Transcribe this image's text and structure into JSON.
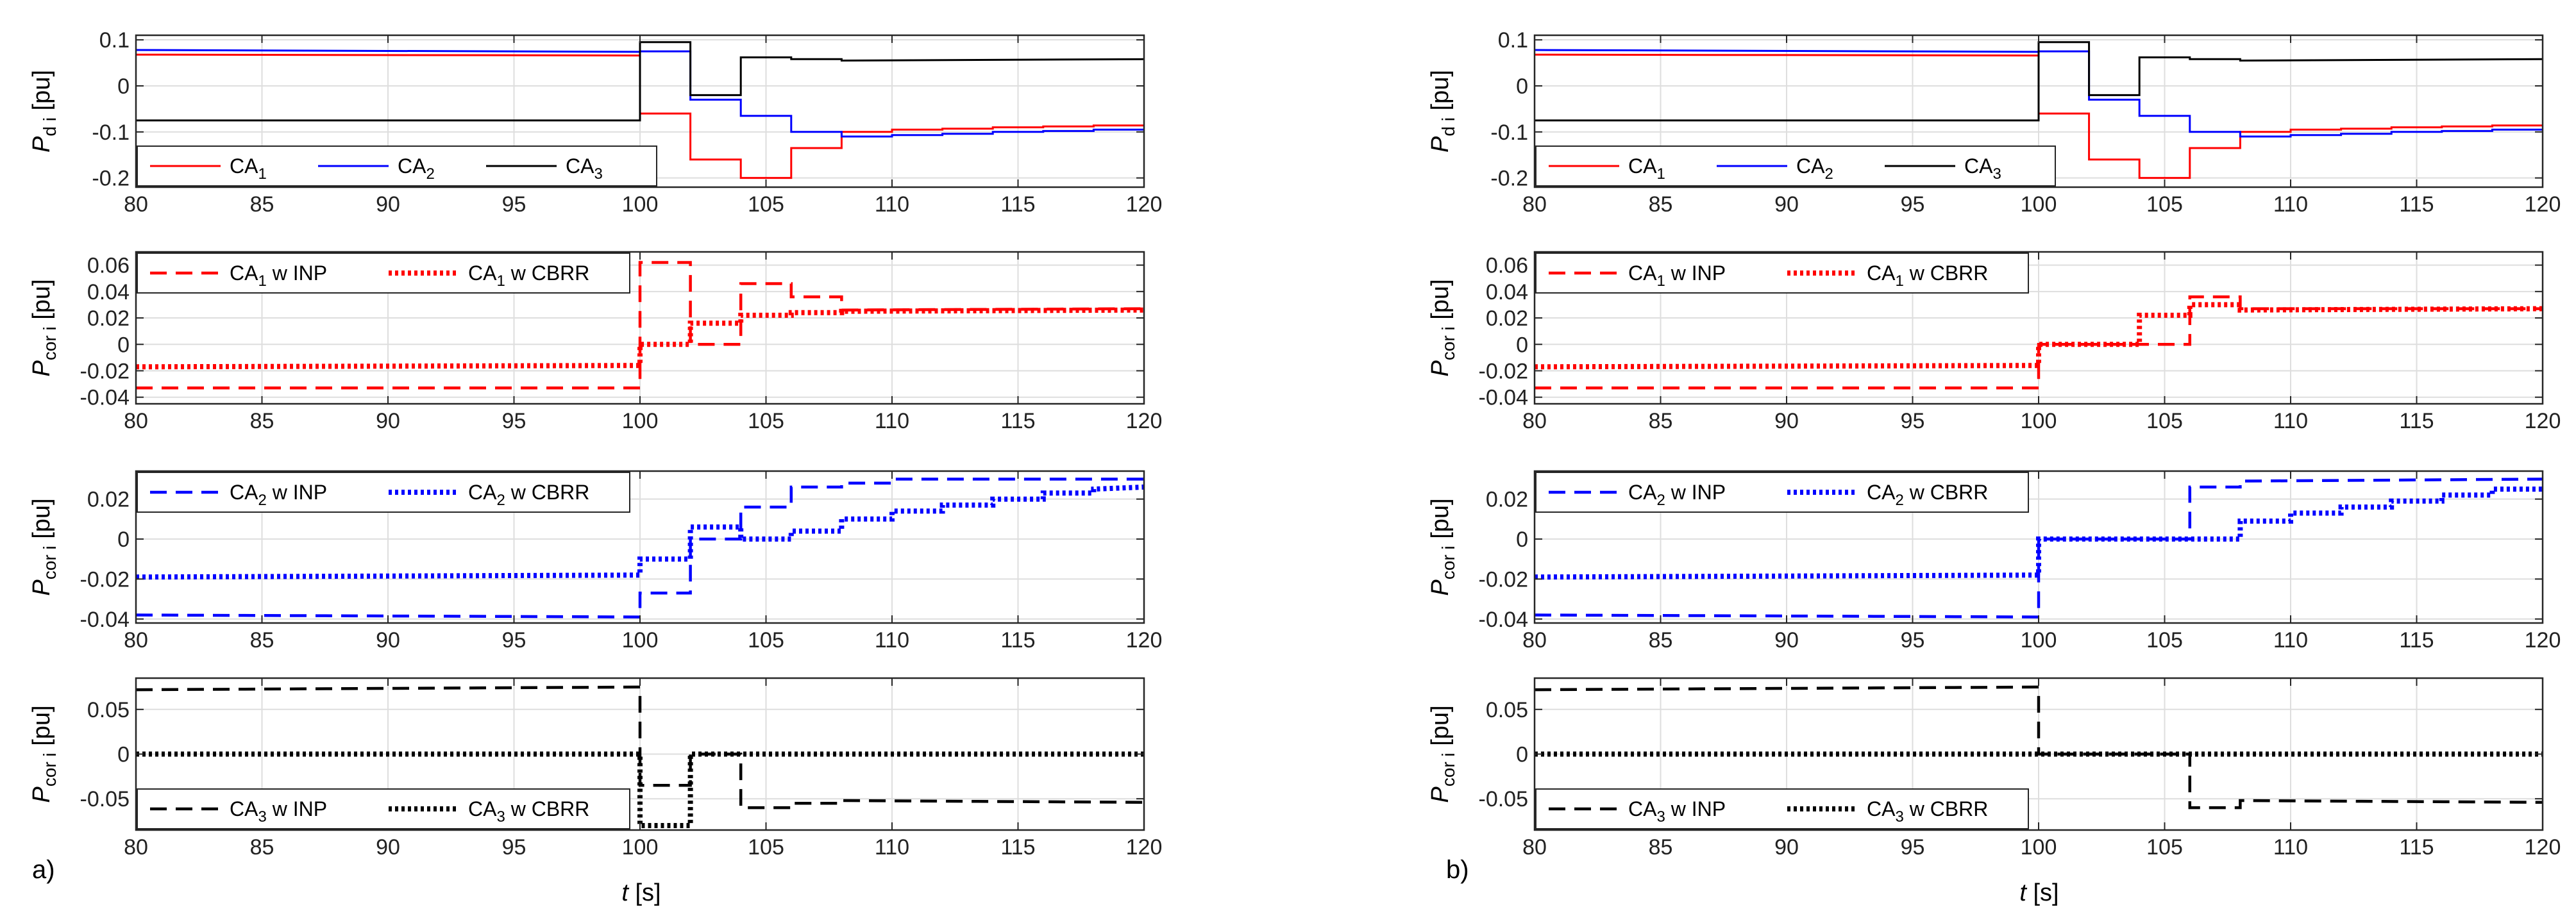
{
  "figure": {
    "xlabel_italic": "t",
    "xlabel_unit": " [s]",
    "panel_labels": [
      "a)",
      "b)"
    ]
  },
  "chart_data": [
    {
      "type": "line",
      "column": "a",
      "row": 1,
      "ylabel": {
        "base": "P",
        "sub": "d i",
        "unit": "[pu]"
      },
      "xlim": [
        80,
        120
      ],
      "ylim": [
        -0.22,
        0.11
      ],
      "xticks": [
        80,
        85,
        90,
        95,
        100,
        105,
        110,
        115,
        120
      ],
      "yticks": [
        0.1,
        0,
        -0.1,
        -0.2
      ],
      "ytick_labels": [
        "0.1",
        "0",
        "-0.1",
        "-0.2"
      ],
      "grid": true,
      "legend_position": "bottom-left",
      "legend_layout": "row",
      "series": [
        {
          "name": "CA",
          "sub": "1",
          "suffix": "",
          "color": "#ff0000",
          "dash": "solid",
          "x": [
            80,
            100,
            100,
            102,
            102,
            104,
            104,
            106,
            106,
            108,
            108,
            110,
            110,
            112,
            112,
            114,
            114,
            116,
            116,
            118,
            118,
            120
          ],
          "y": [
            0.068,
            0.066,
            -0.06,
            -0.06,
            -0.16,
            -0.16,
            -0.2,
            -0.2,
            -0.135,
            -0.135,
            -0.1,
            -0.1,
            -0.095,
            -0.095,
            -0.093,
            -0.093,
            -0.09,
            -0.09,
            -0.088,
            -0.088,
            -0.086,
            -0.086
          ]
        },
        {
          "name": "CA",
          "sub": "2",
          "suffix": "",
          "color": "#0000ff",
          "dash": "solid",
          "x": [
            80,
            100,
            100,
            102,
            102,
            104,
            104,
            106,
            106,
            108,
            108,
            110,
            110,
            112,
            112,
            114,
            114,
            116,
            116,
            118,
            118,
            120
          ],
          "y": [
            0.078,
            0.074,
            0.075,
            0.075,
            -0.03,
            -0.03,
            -0.065,
            -0.065,
            -0.1,
            -0.1,
            -0.11,
            -0.11,
            -0.107,
            -0.107,
            -0.104,
            -0.104,
            -0.1,
            -0.1,
            -0.098,
            -0.098,
            -0.095,
            -0.095
          ]
        },
        {
          "name": "CA",
          "sub": "3",
          "suffix": "",
          "color": "#000000",
          "dash": "solid",
          "x": [
            80,
            100,
            100,
            102,
            102,
            104,
            104,
            106,
            106,
            108,
            108,
            120
          ],
          "y": [
            -0.075,
            -0.075,
            0.095,
            0.095,
            -0.02,
            -0.02,
            0.062,
            0.062,
            0.058,
            0.058,
            0.055,
            0.058
          ]
        }
      ]
    },
    {
      "type": "line",
      "column": "a",
      "row": 2,
      "ylabel": {
        "base": "P",
        "sub": "cor i",
        "unit": "[pu]"
      },
      "xlim": [
        80,
        120
      ],
      "ylim": [
        -0.045,
        0.07
      ],
      "xticks": [
        80,
        85,
        90,
        95,
        100,
        105,
        110,
        115,
        120
      ],
      "yticks": [
        0.06,
        0.04,
        0.02,
        0,
        -0.02,
        -0.04
      ],
      "ytick_labels": [
        "0.06",
        "0.04",
        "0.02",
        "0",
        "-0.02",
        "-0.04"
      ],
      "grid": true,
      "legend_position": "top-left",
      "legend_layout": "row",
      "series": [
        {
          "name": "CA",
          "sub": "1",
          "suffix": " w INP",
          "color": "#ff0000",
          "dash": "dashed",
          "x": [
            80,
            100,
            100,
            102,
            102,
            104,
            104,
            106,
            106,
            108,
            108,
            120
          ],
          "y": [
            -0.033,
            -0.033,
            0.062,
            0.062,
            0.0,
            0.0,
            0.046,
            0.046,
            0.036,
            0.036,
            0.026,
            0.027
          ]
        },
        {
          "name": "CA",
          "sub": "1",
          "suffix": " w CBRR",
          "color": "#ff0000",
          "dash": "dotted",
          "x": [
            80,
            100,
            100,
            102,
            102,
            104,
            104,
            106,
            106,
            108,
            108,
            120
          ],
          "y": [
            -0.017,
            -0.016,
            0.0,
            0.0,
            0.016,
            0.016,
            0.022,
            0.022,
            0.024,
            0.024,
            0.025,
            0.026
          ]
        }
      ]
    },
    {
      "type": "line",
      "column": "a",
      "row": 3,
      "ylabel": {
        "base": "P",
        "sub": "cor i",
        "unit": "[pu]"
      },
      "xlim": [
        80,
        120
      ],
      "ylim": [
        -0.042,
        0.034
      ],
      "xticks": [
        80,
        85,
        90,
        95,
        100,
        105,
        110,
        115,
        120
      ],
      "yticks": [
        0.02,
        0,
        -0.02,
        -0.04
      ],
      "ytick_labels": [
        "0.02",
        "0",
        "-0.02",
        "-0.04"
      ],
      "grid": true,
      "legend_position": "top-left",
      "legend_layout": "row",
      "series": [
        {
          "name": "CA",
          "sub": "2",
          "suffix": " w INP",
          "color": "#0000ff",
          "dash": "dashed",
          "x": [
            80,
            100,
            100,
            102,
            102,
            104,
            104,
            106,
            106,
            108,
            108,
            110,
            110,
            120
          ],
          "y": [
            -0.038,
            -0.039,
            -0.027,
            -0.027,
            0.0,
            0.0,
            0.016,
            0.016,
            0.026,
            0.026,
            0.028,
            0.028,
            0.03,
            0.03
          ]
        },
        {
          "name": "CA",
          "sub": "2",
          "suffix": " w CBRR",
          "color": "#0000ff",
          "dash": "dotted",
          "x": [
            80,
            100,
            100,
            102,
            102,
            104,
            104,
            106,
            106,
            108,
            108,
            110,
            110,
            112,
            112,
            114,
            114,
            116,
            116,
            118,
            118,
            120
          ],
          "y": [
            -0.019,
            -0.018,
            -0.01,
            -0.01,
            0.006,
            0.006,
            0.0,
            0.0,
            0.004,
            0.004,
            0.01,
            0.01,
            0.014,
            0.014,
            0.017,
            0.017,
            0.02,
            0.02,
            0.023,
            0.023,
            0.025,
            0.026
          ]
        }
      ]
    },
    {
      "type": "line",
      "column": "a",
      "row": 4,
      "ylabel": {
        "base": "P",
        "sub": "cor i",
        "unit": "[pu]"
      },
      "xlim": [
        80,
        120
      ],
      "ylim": [
        -0.085,
        0.085
      ],
      "xticks": [
        80,
        85,
        90,
        95,
        100,
        105,
        110,
        115,
        120
      ],
      "yticks": [
        0.05,
        0,
        -0.05
      ],
      "ytick_labels": [
        "0.05",
        "0",
        "-0.05"
      ],
      "grid": true,
      "legend_position": "bottom-left",
      "legend_layout": "row",
      "series": [
        {
          "name": "CA",
          "sub": "3",
          "suffix": " w INP",
          "color": "#000000",
          "dash": "dashed",
          "x": [
            80,
            100,
            100,
            102,
            102,
            104,
            104,
            106,
            106,
            108,
            108,
            120
          ],
          "y": [
            0.072,
            0.075,
            -0.035,
            -0.035,
            0.0,
            0.0,
            -0.06,
            -0.06,
            -0.055,
            -0.055,
            -0.052,
            -0.054
          ]
        },
        {
          "name": "CA",
          "sub": "3",
          "suffix": " w CBRR",
          "color": "#000000",
          "dash": "dotted",
          "x": [
            80,
            100,
            100,
            102,
            102,
            120
          ],
          "y": [
            0.0,
            0.0,
            -0.08,
            -0.08,
            0.0,
            0.0
          ]
        }
      ]
    },
    {
      "type": "line",
      "column": "b",
      "row": 1,
      "ylabel": {
        "base": "P",
        "sub": "d i",
        "unit": "[pu]"
      },
      "xlim": [
        80,
        120
      ],
      "ylim": [
        -0.22,
        0.11
      ],
      "xticks": [
        80,
        85,
        90,
        95,
        100,
        105,
        110,
        115,
        120
      ],
      "yticks": [
        0.1,
        0,
        -0.1,
        -0.2
      ],
      "ytick_labels": [
        "0.1",
        "0",
        "-0.1",
        "-0.2"
      ],
      "grid": true,
      "legend_position": "bottom-left",
      "legend_layout": "row",
      "series": [
        {
          "name": "CA",
          "sub": "1",
          "suffix": "",
          "color": "#ff0000",
          "dash": "solid",
          "x": [
            80,
            100,
            100,
            102,
            102,
            104,
            104,
            106,
            106,
            108,
            108,
            110,
            110,
            112,
            112,
            114,
            114,
            116,
            116,
            118,
            118,
            120
          ],
          "y": [
            0.068,
            0.066,
            -0.06,
            -0.06,
            -0.16,
            -0.16,
            -0.2,
            -0.2,
            -0.135,
            -0.135,
            -0.1,
            -0.1,
            -0.095,
            -0.095,
            -0.093,
            -0.093,
            -0.09,
            -0.09,
            -0.088,
            -0.088,
            -0.086,
            -0.086
          ]
        },
        {
          "name": "CA",
          "sub": "2",
          "suffix": "",
          "color": "#0000ff",
          "dash": "solid",
          "x": [
            80,
            100,
            100,
            102,
            102,
            104,
            104,
            106,
            106,
            108,
            108,
            110,
            110,
            112,
            112,
            114,
            114,
            116,
            116,
            118,
            118,
            120
          ],
          "y": [
            0.078,
            0.074,
            0.075,
            0.075,
            -0.03,
            -0.03,
            -0.065,
            -0.065,
            -0.1,
            -0.1,
            -0.11,
            -0.11,
            -0.107,
            -0.107,
            -0.104,
            -0.104,
            -0.1,
            -0.1,
            -0.098,
            -0.098,
            -0.095,
            -0.095
          ]
        },
        {
          "name": "CA",
          "sub": "3",
          "suffix": "",
          "color": "#000000",
          "dash": "solid",
          "x": [
            80,
            100,
            100,
            102,
            102,
            104,
            104,
            106,
            106,
            108,
            108,
            120
          ],
          "y": [
            -0.075,
            -0.075,
            0.095,
            0.095,
            -0.02,
            -0.02,
            0.062,
            0.062,
            0.058,
            0.058,
            0.055,
            0.058
          ]
        }
      ]
    },
    {
      "type": "line",
      "column": "b",
      "row": 2,
      "ylabel": {
        "base": "P",
        "sub": "cor i",
        "unit": "[pu]"
      },
      "xlim": [
        80,
        120
      ],
      "ylim": [
        -0.045,
        0.07
      ],
      "xticks": [
        80,
        85,
        90,
        95,
        100,
        105,
        110,
        115,
        120
      ],
      "yticks": [
        0.06,
        0.04,
        0.02,
        0,
        -0.02,
        -0.04
      ],
      "ytick_labels": [
        "0.06",
        "0.04",
        "0.02",
        "0",
        "-0.02",
        "-0.04"
      ],
      "grid": true,
      "legend_position": "top-left",
      "legend_layout": "row",
      "series": [
        {
          "name": "CA",
          "sub": "1",
          "suffix": " w INP",
          "color": "#ff0000",
          "dash": "dashed",
          "x": [
            80,
            100,
            100,
            106,
            106,
            108,
            108,
            120
          ],
          "y": [
            -0.033,
            -0.033,
            0.0,
            0.0,
            0.036,
            0.036,
            0.027,
            0.027
          ]
        },
        {
          "name": "CA",
          "sub": "1",
          "suffix": " w CBRR",
          "color": "#ff0000",
          "dash": "dotted",
          "x": [
            80,
            100,
            100,
            104,
            104,
            106,
            106,
            108,
            108,
            120
          ],
          "y": [
            -0.017,
            -0.016,
            0.0,
            0.0,
            0.022,
            0.022,
            0.03,
            0.03,
            0.026,
            0.027
          ]
        }
      ]
    },
    {
      "type": "line",
      "column": "b",
      "row": 3,
      "ylabel": {
        "base": "P",
        "sub": "cor i",
        "unit": "[pu]"
      },
      "xlim": [
        80,
        120
      ],
      "ylim": [
        -0.042,
        0.034
      ],
      "xticks": [
        80,
        85,
        90,
        95,
        100,
        105,
        110,
        115,
        120
      ],
      "yticks": [
        0.02,
        0,
        -0.02,
        -0.04
      ],
      "ytick_labels": [
        "0.02",
        "0",
        "-0.02",
        "-0.04"
      ],
      "grid": true,
      "legend_position": "top-left",
      "legend_layout": "row",
      "series": [
        {
          "name": "CA",
          "sub": "2",
          "suffix": " w INP",
          "color": "#0000ff",
          "dash": "dashed",
          "x": [
            80,
            100,
            100,
            106,
            106,
            108,
            108,
            120
          ],
          "y": [
            -0.038,
            -0.039,
            0.0,
            0.0,
            0.026,
            0.026,
            0.029,
            0.03
          ]
        },
        {
          "name": "CA",
          "sub": "2",
          "suffix": " w CBRR",
          "color": "#0000ff",
          "dash": "dotted",
          "x": [
            80,
            100,
            100,
            108,
            108,
            110,
            110,
            112,
            112,
            114,
            114,
            116,
            116,
            118,
            118,
            120
          ],
          "y": [
            -0.019,
            -0.018,
            0.0,
            0.0,
            0.009,
            0.009,
            0.013,
            0.013,
            0.016,
            0.016,
            0.019,
            0.019,
            0.022,
            0.022,
            0.025,
            0.025
          ]
        }
      ]
    },
    {
      "type": "line",
      "column": "b",
      "row": 4,
      "ylabel": {
        "base": "P",
        "sub": "cor i",
        "unit": "[pu]"
      },
      "xlim": [
        80,
        120
      ],
      "ylim": [
        -0.085,
        0.085
      ],
      "xticks": [
        80,
        85,
        90,
        95,
        100,
        105,
        110,
        115,
        120
      ],
      "yticks": [
        0.05,
        0,
        -0.05
      ],
      "ytick_labels": [
        "0.05",
        "0",
        "-0.05"
      ],
      "grid": true,
      "legend_position": "bottom-left",
      "legend_layout": "row",
      "series": [
        {
          "name": "CA",
          "sub": "3",
          "suffix": " w INP",
          "color": "#000000",
          "dash": "dashed",
          "x": [
            80,
            100,
            100,
            106,
            106,
            108,
            108,
            120
          ],
          "y": [
            0.072,
            0.075,
            0.0,
            0.0,
            -0.06,
            -0.06,
            -0.052,
            -0.054
          ]
        },
        {
          "name": "CA",
          "sub": "3",
          "suffix": " w CBRR",
          "color": "#000000",
          "dash": "dotted",
          "x": [
            80,
            120
          ],
          "y": [
            0.0,
            0.0
          ]
        }
      ]
    }
  ]
}
